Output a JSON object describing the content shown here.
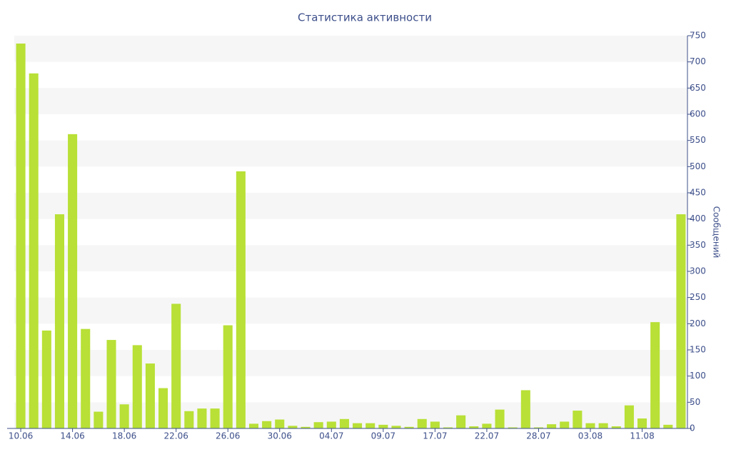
{
  "chart_data": {
    "type": "bar",
    "title": "Статистика активности",
    "y_label": "Сообщений",
    "categories": [
      "10.06",
      null,
      null,
      null,
      "14.06",
      null,
      null,
      null,
      "18.06",
      null,
      null,
      null,
      "22.06",
      null,
      null,
      null,
      "26.06",
      null,
      null,
      null,
      "30.06",
      null,
      null,
      null,
      "04.07",
      null,
      null,
      null,
      "09.07",
      null,
      null,
      null,
      "17.07",
      null,
      null,
      null,
      "22.07",
      null,
      null,
      null,
      "28.07",
      null,
      null,
      null,
      "03.08",
      null,
      null,
      null,
      "11.08",
      null,
      null,
      null
    ],
    "values": [
      735,
      678,
      187,
      409,
      562,
      190,
      32,
      169,
      46,
      159,
      124,
      77,
      238,
      33,
      38,
      38,
      197,
      491,
      9,
      14,
      17,
      5,
      3,
      12,
      13,
      18,
      10,
      10,
      7,
      5,
      3,
      18,
      13,
      2,
      25,
      4,
      9,
      36,
      2,
      73,
      2,
      8,
      13,
      34,
      10,
      10,
      4,
      44,
      19,
      203,
      7,
      409
    ],
    "color": "#b8e036",
    "ylim": [
      0,
      750
    ],
    "yticks": [
      0,
      50,
      100,
      150,
      200,
      250,
      300,
      350,
      400,
      450,
      500,
      550,
      600,
      650,
      700,
      750
    ],
    "y_axis_side": "right",
    "grid": "bands"
  }
}
